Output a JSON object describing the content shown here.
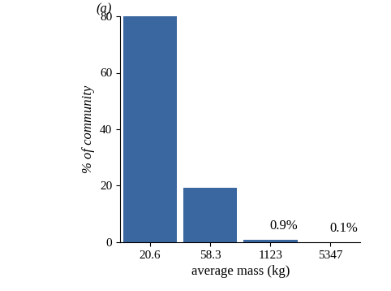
{
  "chart_data": {
    "type": "bar",
    "title": "(a)",
    "x_label": "average mass (kg)",
    "y_label": "% of community",
    "categories": [
      "20.6",
      "58.3",
      "1123",
      "5347"
    ],
    "values": [
      80,
      19.3,
      0.9,
      0.1
    ],
    "data_labels": true,
    "value_labels": [
      null,
      null,
      "0.9%",
      "0.1%"
    ],
    "color": "#3a67a0",
    "ylim": [
      0,
      80
    ],
    "yticks": [
      0,
      20,
      40,
      60,
      80
    ],
    "grid": false
  }
}
